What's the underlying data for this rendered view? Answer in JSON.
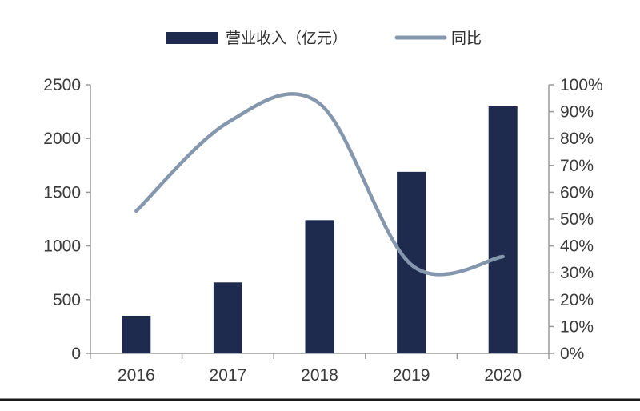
{
  "chart_data": {
    "type": "bar",
    "categories": [
      "2016",
      "2017",
      "2018",
      "2019",
      "2020"
    ],
    "series": [
      {
        "name": "营业收入（亿元）",
        "type": "bar",
        "axis": "left",
        "values": [
          350,
          660,
          1240,
          1690,
          2300
        ],
        "color": "#1f2a4f"
      },
      {
        "name": "同比",
        "type": "line",
        "axis": "right",
        "values": [
          0.53,
          0.86,
          0.93,
          0.33,
          0.36
        ],
        "color": "#8597ad"
      }
    ],
    "ylim": [
      0,
      2500
    ],
    "yticks": [
      "0",
      "500",
      "1000",
      "1500",
      "2000",
      "2500"
    ],
    "y2lim": [
      0,
      1
    ],
    "y2ticks": [
      "0%",
      "10%",
      "20%",
      "30%",
      "40%",
      "50%",
      "60%",
      "70%",
      "80%",
      "90%",
      "100%"
    ],
    "legend_position": "top-center",
    "grid": false
  }
}
